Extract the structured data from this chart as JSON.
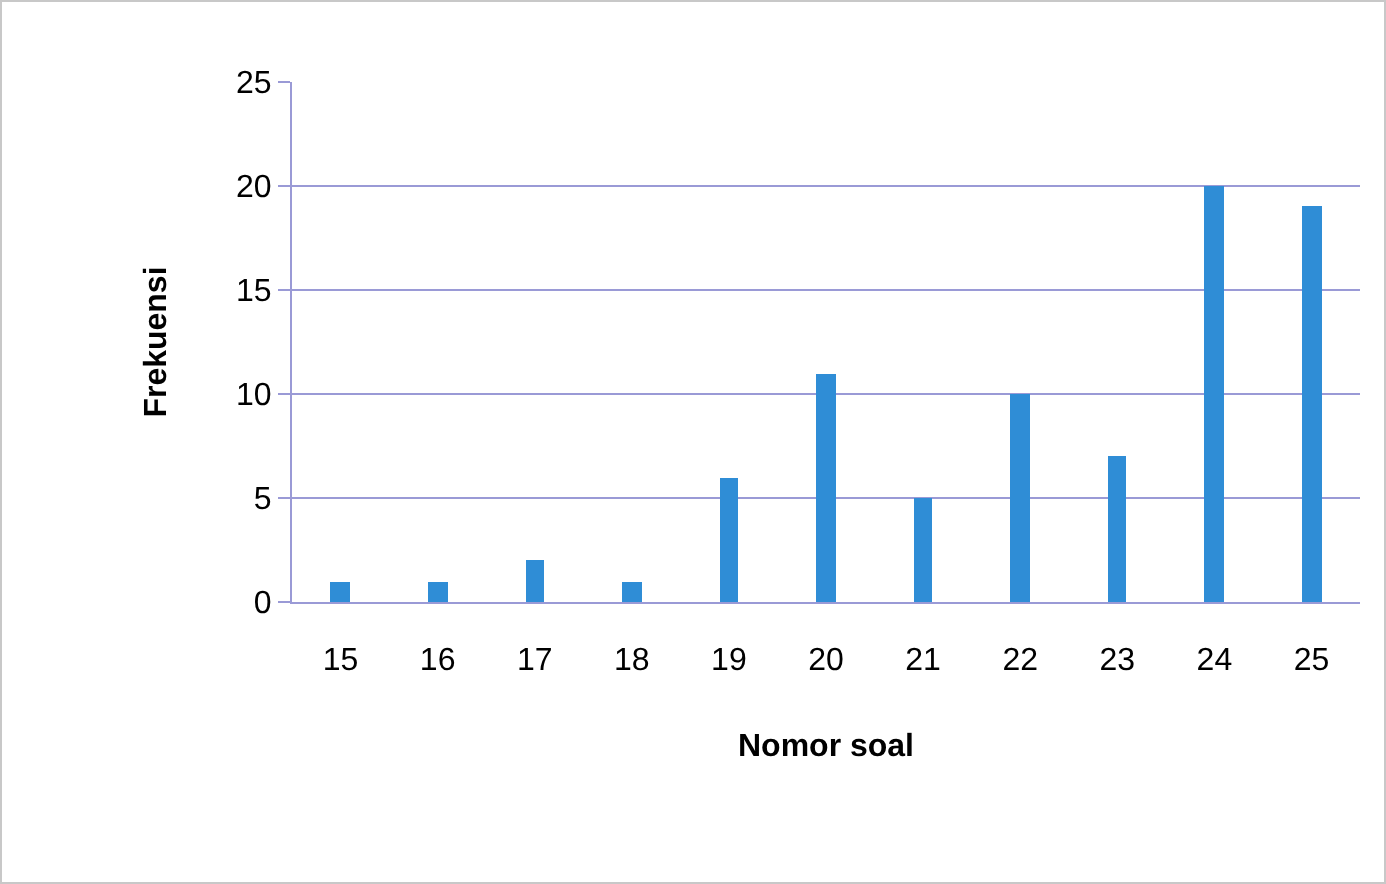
{
  "chart_data": {
    "type": "bar",
    "xlabel": "Nomor soal",
    "ylabel": "Frekuensi",
    "categories": [
      "15",
      "16",
      "17",
      "18",
      "19",
      "20",
      "21",
      "22",
      "23",
      "24",
      "25"
    ],
    "values": [
      1,
      1,
      2,
      1,
      6,
      11,
      5,
      10,
      7,
      20,
      19
    ],
    "color": "#2f8dd6",
    "ylim": [
      0,
      25
    ],
    "yticks": [
      0,
      5,
      10,
      15,
      20,
      25
    ],
    "grid": "y",
    "legend": false
  }
}
